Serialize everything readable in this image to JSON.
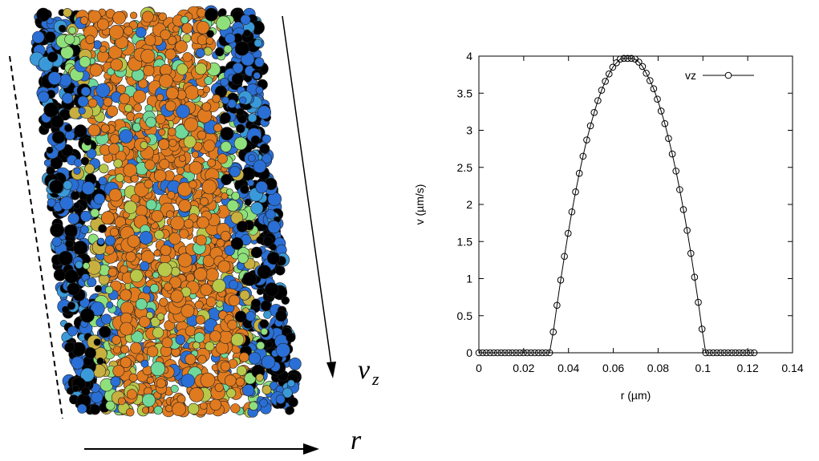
{
  "chart_data": {
    "type": "line",
    "xlabel": "r (µm)",
    "ylabel": "v (µm/s)",
    "xlim": [
      0,
      0.14
    ],
    "xticks": [
      0,
      0.02,
      0.04,
      0.06,
      0.08,
      0.1,
      0.12,
      0.14
    ],
    "ylim": [
      0,
      4
    ],
    "yticks": [
      0,
      0.5,
      1,
      1.5,
      2,
      2.5,
      3,
      3.5,
      4
    ],
    "legend": "top-right",
    "grid": false,
    "x": [
      0,
      0.00166,
      0.00332,
      0.00498,
      0.00664,
      0.0083,
      0.00996,
      0.01162,
      0.01328,
      0.01494,
      0.0166,
      0.01826,
      0.01992,
      0.02158,
      0.02324,
      0.0249,
      0.02656,
      0.02822,
      0.02988,
      0.03154,
      0.0332,
      0.03486,
      0.03652,
      0.03818,
      0.03984,
      0.0415,
      0.04316,
      0.04482,
      0.04648,
      0.04814,
      0.0498,
      0.05146,
      0.05312,
      0.05478,
      0.05644,
      0.0581,
      0.05976,
      0.06142,
      0.06308,
      0.06474,
      0.0664,
      0.06806,
      0.06972,
      0.07138,
      0.07304,
      0.0747,
      0.07636,
      0.07802,
      0.07968,
      0.08134,
      0.083,
      0.08466,
      0.08632,
      0.08798,
      0.08964,
      0.0913,
      0.09296,
      0.09462,
      0.09628,
      0.09794,
      0.0996,
      0.10126,
      0.10292,
      0.10458,
      0.10624,
      0.1079,
      0.10956,
      0.11122,
      0.11288,
      0.11454,
      0.1162,
      0.11786,
      0.11952,
      0.12118,
      0.12284
    ],
    "series": [
      {
        "name": "vz",
        "color": "#000000",
        "values": [
          0,
          0,
          0,
          0,
          0,
          0,
          0,
          0,
          0,
          0,
          0,
          0,
          0,
          0,
          0,
          0,
          0,
          0,
          0,
          0,
          0.28,
          0.64,
          0.98,
          1.3,
          1.61,
          1.9,
          2.17,
          2.42,
          2.65,
          2.87,
          3.06,
          3.24,
          3.4,
          3.54,
          3.66,
          3.76,
          3.85,
          3.91,
          3.96,
          3.97,
          3.97,
          3.97,
          3.96,
          3.92,
          3.86,
          3.77,
          3.67,
          3.56,
          3.42,
          3.26,
          3.09,
          2.89,
          2.68,
          2.45,
          2.2,
          1.93,
          1.65,
          1.34,
          1.02,
          0.68,
          0.32,
          0,
          0,
          0,
          0,
          0,
          0,
          0,
          0,
          0,
          0,
          0,
          0,
          0,
          0
        ]
      }
    ],
    "annotations": [
      "v",
      "z",
      "r"
    ]
  }
}
